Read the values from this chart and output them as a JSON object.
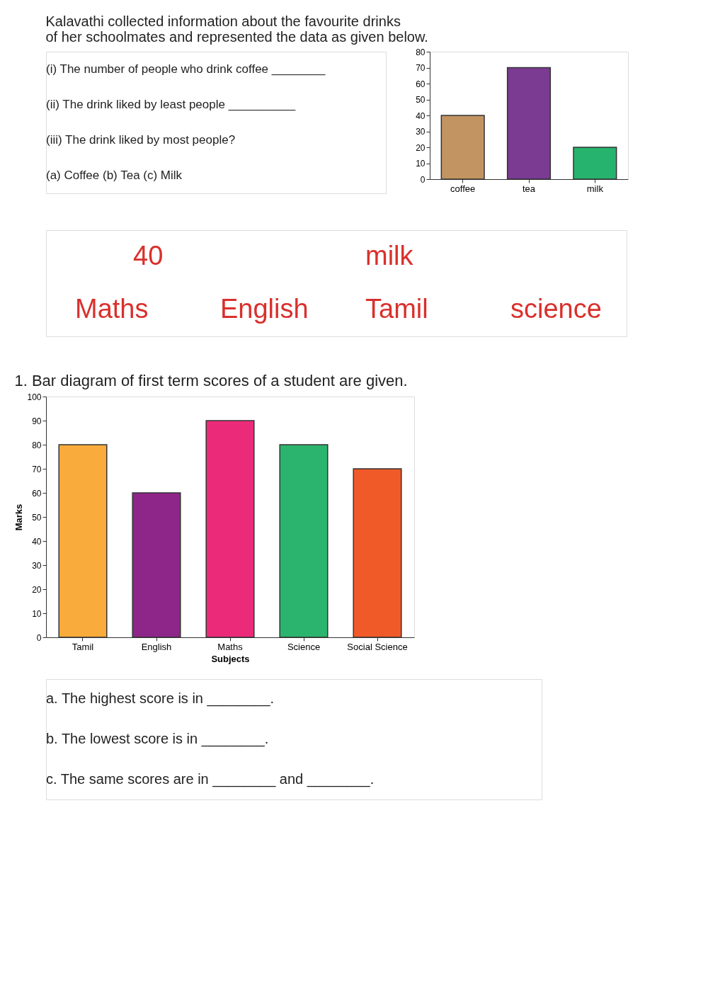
{
  "chart_data": [
    {
      "type": "bar",
      "title": "Kalavathi collected information about the favourite drinks of her schoolmates and represented the data as given below.",
      "annotations": [
        "(i) The number of people who drink coffee ________",
        "(ii) The drink liked by least people __________",
        "(iii) The drink liked by most people?",
        "(a)  Coffee   (b)  Tea   (c)  Milk"
      ],
      "categories": [
        "coffee",
        "tea",
        "milk"
      ],
      "values": [
        40,
        70,
        20
      ],
      "colors": [
        "#c29462",
        "#7b3b92",
        "#26b36e"
      ],
      "ylim": [
        0,
        80
      ],
      "yticks": [
        0,
        10,
        20,
        30,
        40,
        50,
        60,
        70,
        80
      ],
      "grid": false
    },
    {
      "type": "other",
      "annotations": [
        "40",
        "milk",
        "Maths",
        "English",
        "Tamil",
        "science"
      ]
    },
    {
      "type": "bar",
      "title": "1.   Bar diagram of first term scores of a student are given.",
      "xlabel": "Subjects",
      "ylabel": "Marks",
      "annotations": [
        "a.   The highest score is in ________.",
        "b.   The lowest score is in ________.",
        "c.   The same scores are in ________ and ________."
      ],
      "categories": [
        "Tamil",
        "English",
        "Maths",
        "Science",
        "Social Science"
      ],
      "values": [
        80,
        60,
        90,
        80,
        70
      ],
      "colors": [
        "#f9ab3b",
        "#8e2589",
        "#ec2a7a",
        "#2bb46e",
        "#f05a28"
      ],
      "ylim": [
        0,
        100
      ],
      "yticks": [
        0,
        10,
        20,
        30,
        40,
        50,
        60,
        70,
        80,
        90,
        100
      ],
      "grid": false
    }
  ]
}
